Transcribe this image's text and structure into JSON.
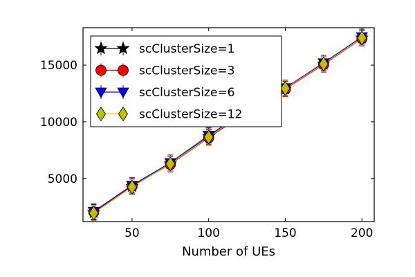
{
  "chart_data": {
    "type": "line",
    "title": "",
    "xlabel": "Number of UEs",
    "ylabel": "",
    "xlim": [
      18,
      208
    ],
    "ylim": [
      1200,
      18300
    ],
    "x_ticks": [
      50,
      100,
      150,
      200
    ],
    "y_ticks": [
      5000,
      10000,
      15000
    ],
    "x_tick_labels": [
      "50",
      "100",
      "150",
      "200"
    ],
    "y_tick_labels": [
      "5000",
      "10000",
      "15000"
    ],
    "x": [
      25,
      50,
      75,
      100,
      125,
      150,
      175,
      200
    ],
    "grid": false,
    "legend_placement": "top-left",
    "error_bars": true,
    "series": [
      {
        "name": "scClusterSize=1",
        "marker": "star",
        "color": "#000000",
        "values": [
          2000,
          4300,
          6300,
          8700,
          10900,
          12900,
          15100,
          17400
        ]
      },
      {
        "name": "scClusterSize=3",
        "marker": "circle",
        "color": "#ff0000",
        "values": [
          2050,
          4320,
          6250,
          8600,
          10850,
          12880,
          15050,
          17350
        ]
      },
      {
        "name": "scClusterSize=6",
        "marker": "triangle-down",
        "color": "#0000ff",
        "values": [
          2100,
          4400,
          6400,
          8800,
          11000,
          13000,
          15200,
          17500
        ]
      },
      {
        "name": "scClusterSize=12",
        "marker": "diamond",
        "color": "#bfbf00",
        "values": [
          1950,
          4250,
          6300,
          8650,
          10950,
          12950,
          15100,
          17400
        ]
      }
    ]
  }
}
